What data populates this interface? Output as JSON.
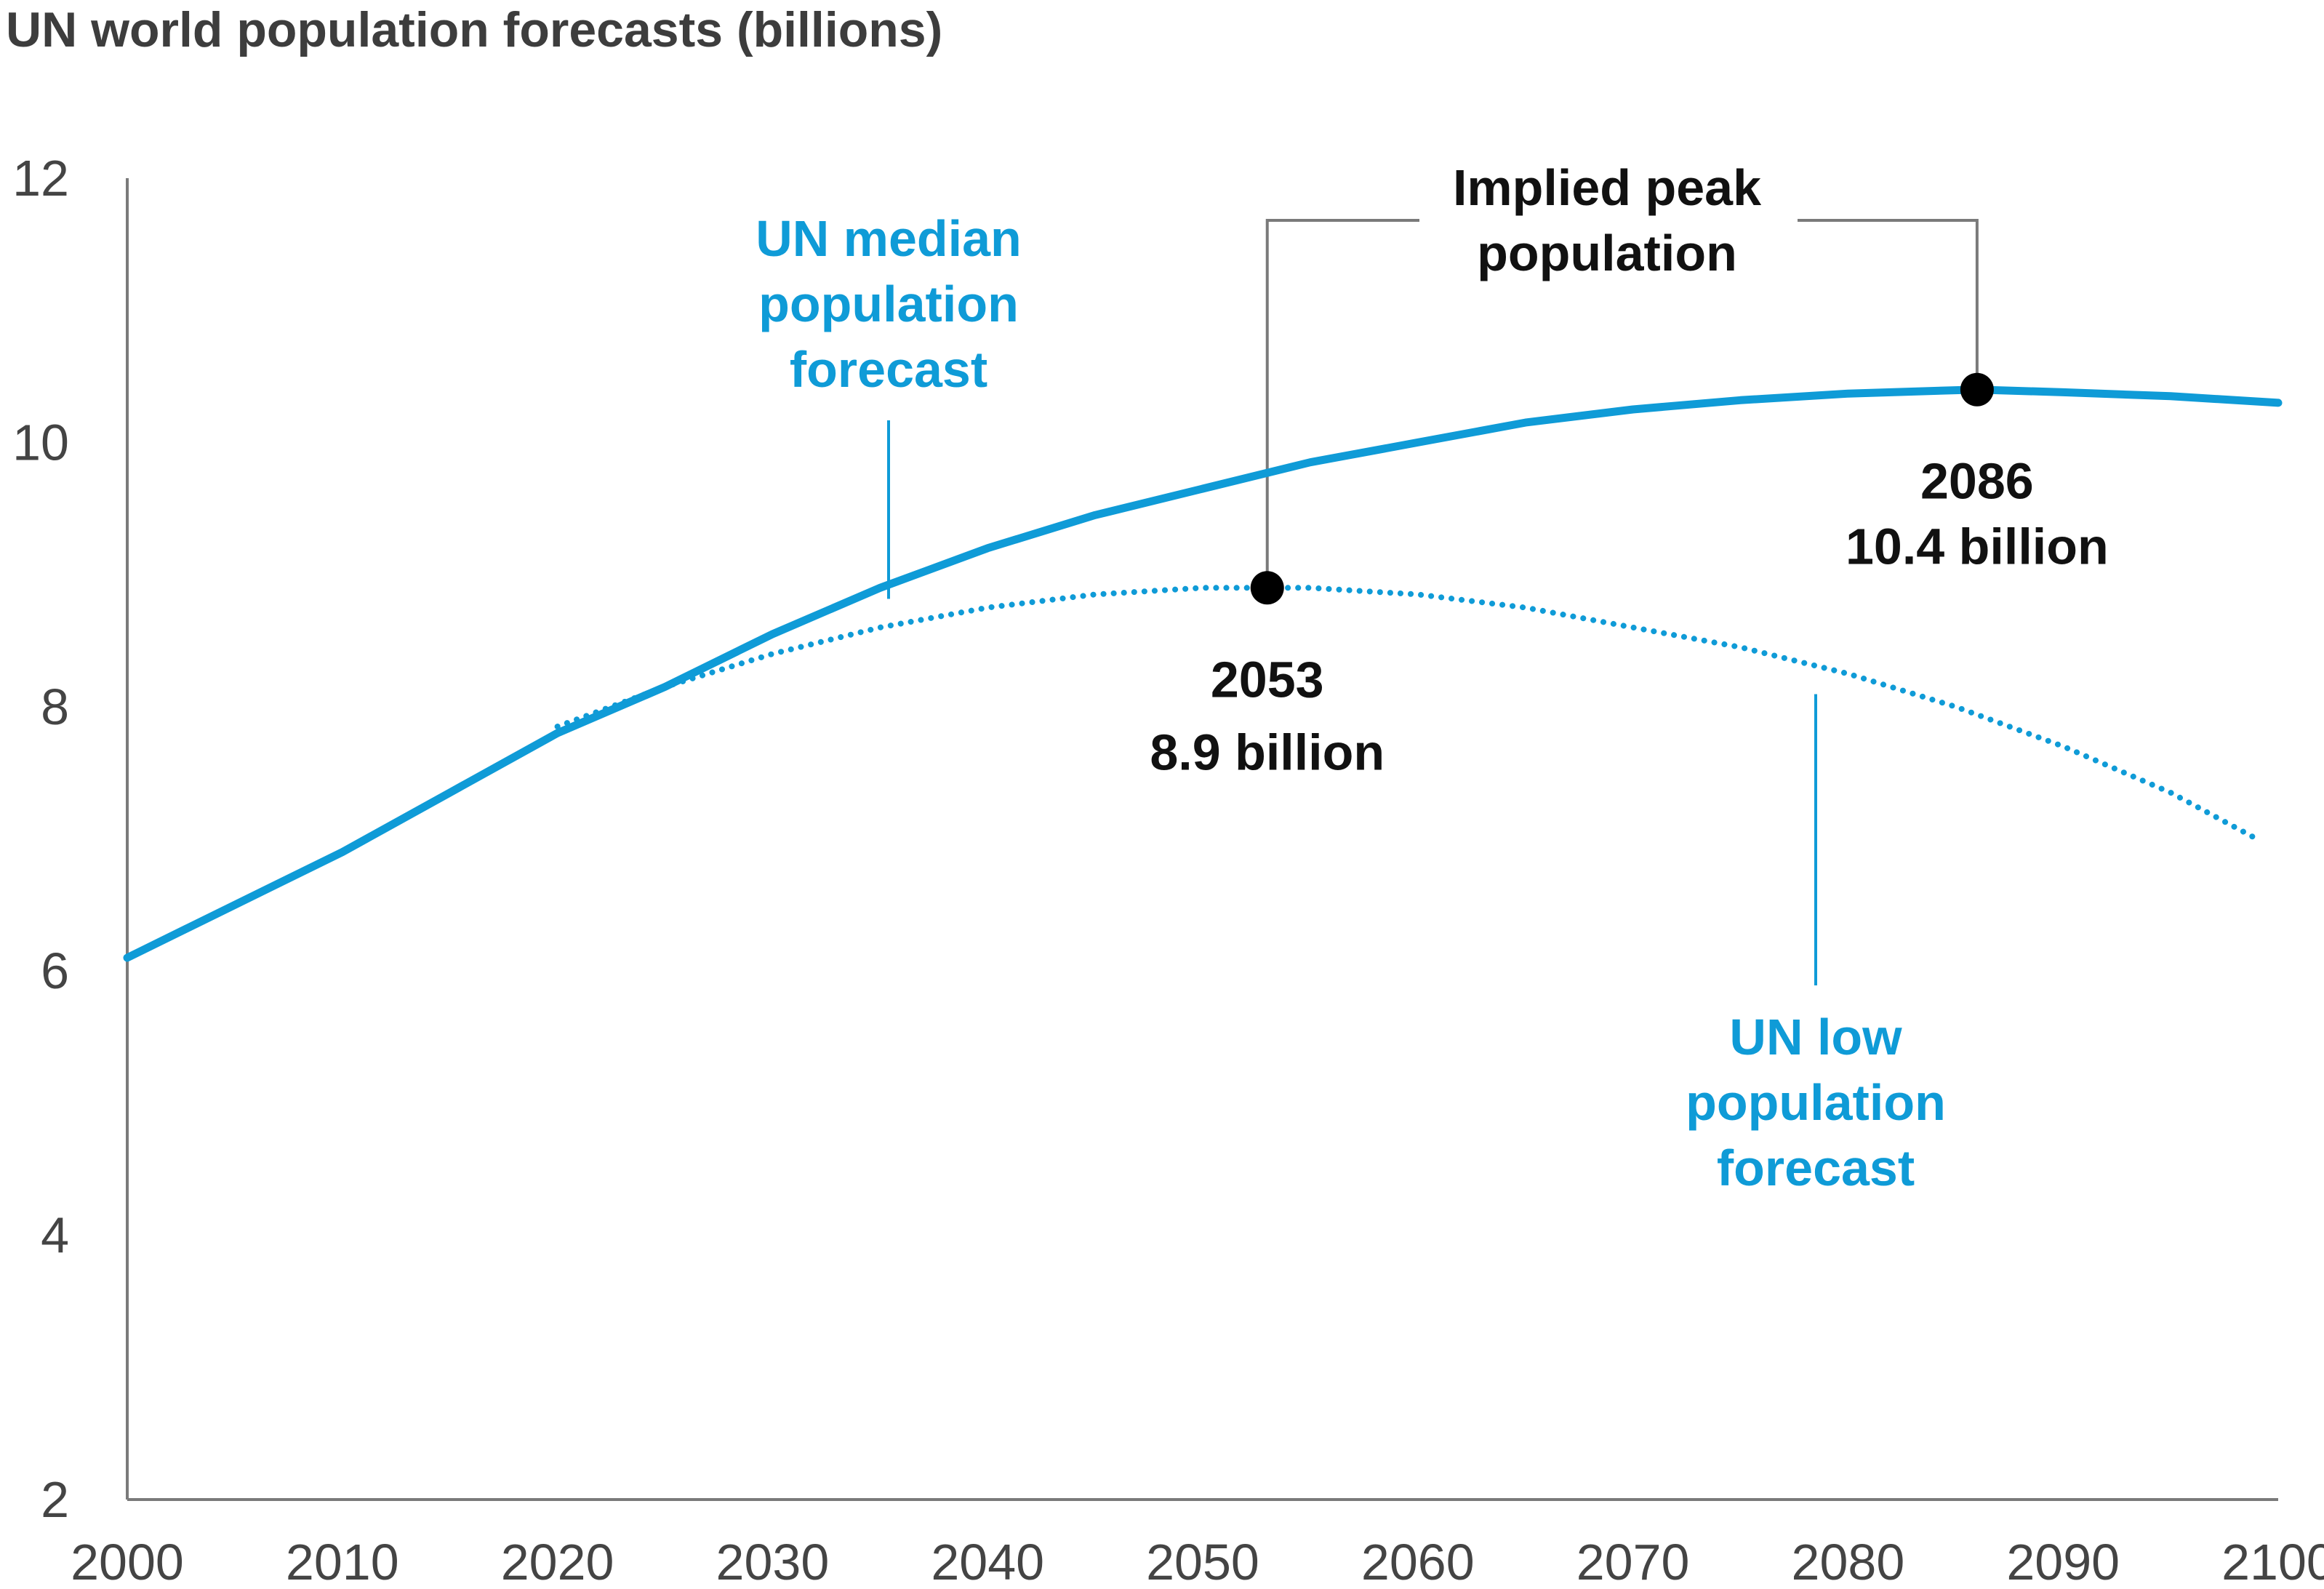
{
  "chart_data": {
    "type": "line",
    "title": "UN world population forecasts (billions)",
    "xlabel": "",
    "ylabel": "",
    "xlim": [
      2000,
      2100
    ],
    "ylim": [
      2,
      12
    ],
    "x_ticks": [
      2000,
      2010,
      2020,
      2030,
      2040,
      2050,
      2060,
      2070,
      2080,
      2090,
      2100
    ],
    "y_ticks": [
      2,
      4,
      6,
      8,
      10,
      12
    ],
    "grid": false,
    "series": [
      {
        "name": "UN median population forecast",
        "label_lines": [
          "UN median",
          "population",
          "forecast"
        ],
        "style": "solid",
        "x": [
          2000,
          2005,
          2010,
          2015,
          2020,
          2025,
          2030,
          2035,
          2040,
          2045,
          2050,
          2055,
          2060,
          2065,
          2070,
          2075,
          2080,
          2086,
          2090,
          2095,
          2100
        ],
        "values": [
          6.1,
          6.5,
          6.9,
          7.35,
          7.8,
          8.15,
          8.55,
          8.9,
          9.2,
          9.45,
          9.65,
          9.85,
          10.0,
          10.15,
          10.25,
          10.32,
          10.37,
          10.4,
          10.38,
          10.35,
          10.3
        ]
      },
      {
        "name": "UN low population forecast",
        "label_lines": [
          "UN low",
          "population",
          "forecast"
        ],
        "style": "dotted",
        "x": [
          2020,
          2025,
          2030,
          2035,
          2040,
          2045,
          2050,
          2053,
          2055,
          2060,
          2065,
          2070,
          2075,
          2080,
          2085,
          2090,
          2095,
          2099
        ],
        "values": [
          7.85,
          8.15,
          8.4,
          8.6,
          8.75,
          8.85,
          8.9,
          8.9,
          8.9,
          8.85,
          8.75,
          8.6,
          8.45,
          8.25,
          8.0,
          7.7,
          7.35,
          7.0
        ]
      }
    ],
    "annotations": {
      "peak_header_lines": [
        "Implied peak",
        "population"
      ],
      "peaks": [
        {
          "x": 2053,
          "y": 8.9,
          "year_text": "2053",
          "value_text": "8.9 billion"
        },
        {
          "x": 2086,
          "y": 10.4,
          "year_text": "2086",
          "value_text": "10.4 billion"
        }
      ]
    },
    "colors": {
      "line": "#0f9bd7",
      "axis": "#7a7a7a",
      "text": "#111111",
      "tick_text": "#444444"
    }
  }
}
